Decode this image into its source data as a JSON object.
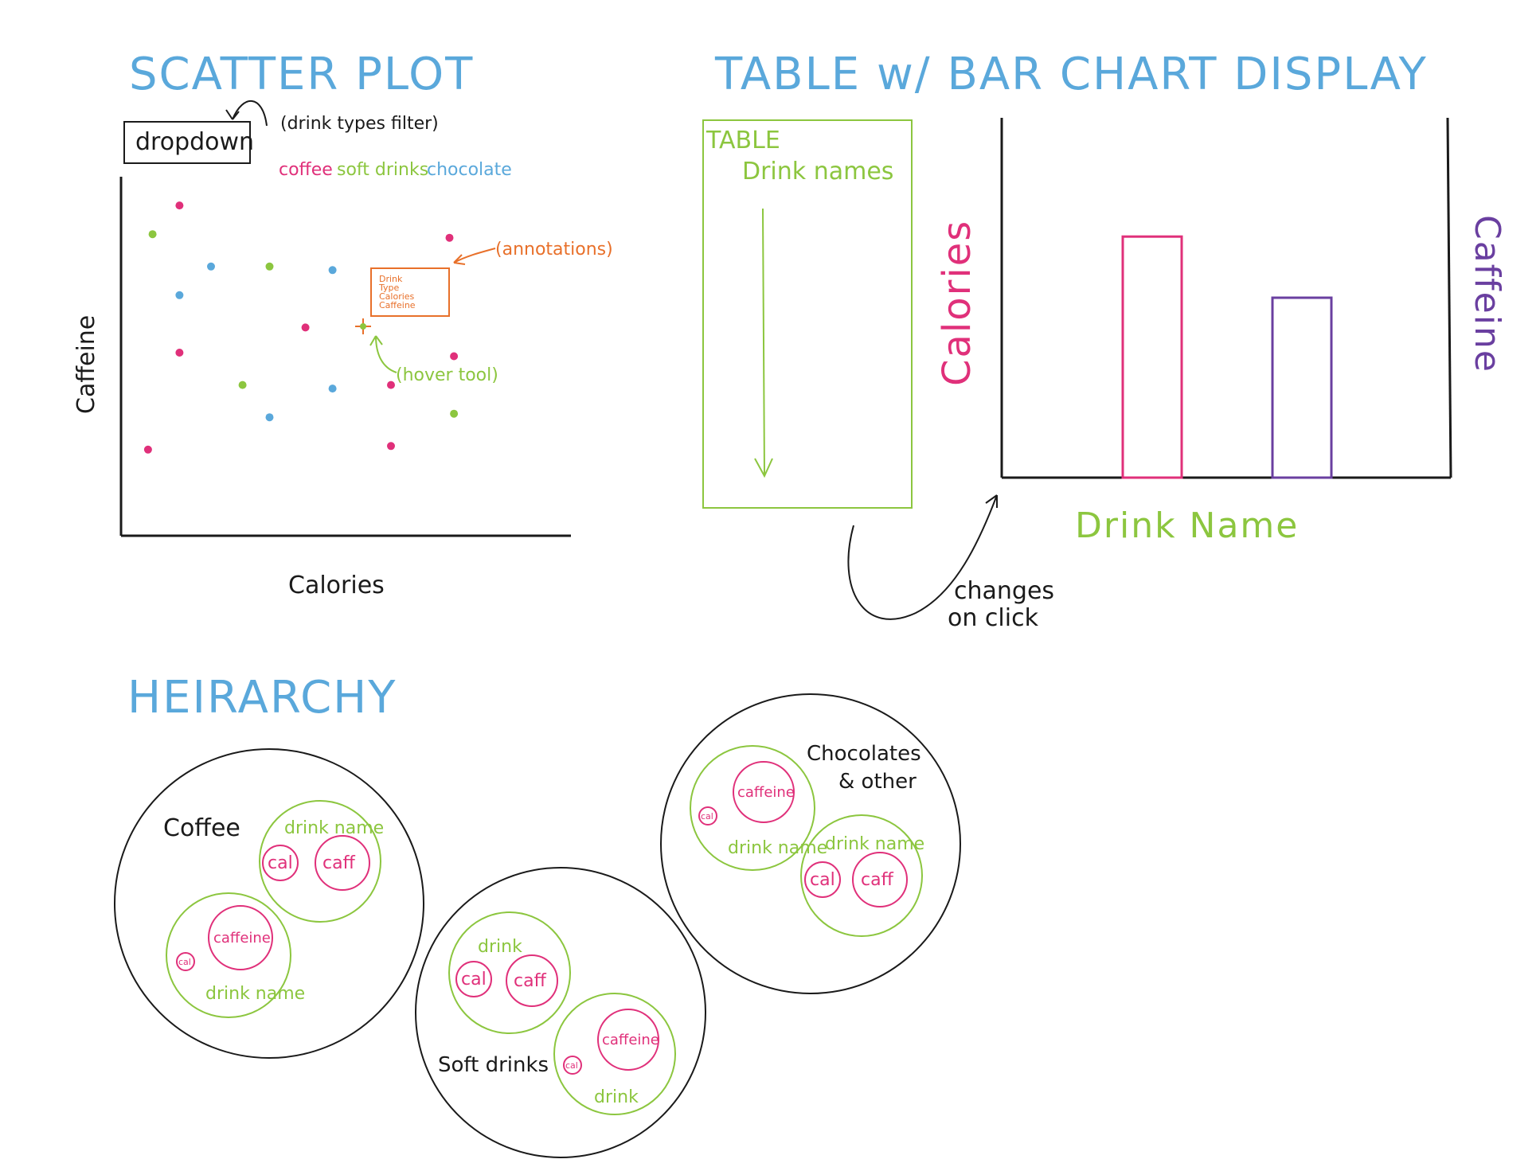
{
  "scatter": {
    "heading": "SCATTER PLOT",
    "dropdown_label": "dropdown",
    "filter_note": "(drink types filter)",
    "legend": [
      {
        "label": "coffee",
        "color": "#e0307a"
      },
      {
        "label": "soft drinks",
        "color": "#8cc63f"
      },
      {
        "label": "chocolate",
        "color": "#5aa8db"
      }
    ],
    "xlabel": "Calories",
    "ylabel": "Caffeine",
    "annotations_note": "(annotations)",
    "annotation_box_lines": [
      "Drink",
      "Type",
      "Calories",
      "Caffeine"
    ],
    "hover_note": "(hover tool)"
  },
  "table_section": {
    "heading": "TABLE w/ BAR CHART DISPLAY",
    "table_title": "TABLE",
    "table_subtitle": "Drink names",
    "changes_note_line1": "changes",
    "changes_note_line2": "on click"
  },
  "bar": {
    "left_label": "Calories",
    "right_label": "Caffeine",
    "xlabel": "Drink Name"
  },
  "hierarchy": {
    "heading": "HEIRARCHY",
    "coffee": {
      "label": "Coffee",
      "drink_a": {
        "label": "drink name",
        "cal": "cal",
        "caff": "caff"
      },
      "drink_b": {
        "label": "drink name",
        "cal": "cal",
        "caff": "caffeine"
      }
    },
    "soft": {
      "label": "Soft drinks",
      "drink_a": {
        "label": "drink",
        "cal": "cal",
        "caff": "caff"
      },
      "drink_b": {
        "label": "drink",
        "cal": "cal",
        "caff": "caffeine"
      }
    },
    "choc": {
      "label_line1": "Chocolates",
      "label_line2": "& other",
      "drink_a": {
        "label": "drink name",
        "cal": "cal",
        "caff": "caffeine"
      },
      "drink_b": {
        "label": "drink name",
        "cal": "cal",
        "caff": "caff"
      }
    }
  },
  "chart_data": [
    {
      "type": "scatter",
      "title": "SCATTER PLOT",
      "xlabel": "Calories",
      "ylabel": "Caffeine",
      "xlim": [
        0,
        100
      ],
      "ylim": [
        0,
        100
      ],
      "series": [
        {
          "name": "coffee",
          "color": "#e0307a",
          "points": [
            [
              13,
              92
            ],
            [
              73,
              83
            ],
            [
              13,
              51
            ],
            [
              41,
              58
            ],
            [
              6,
              24
            ],
            [
              60,
              42
            ],
            [
              60,
              25
            ],
            [
              74,
              50
            ]
          ]
        },
        {
          "name": "soft drinks",
          "color": "#8cc63f",
          "points": [
            [
              7,
              84
            ],
            [
              33,
              75
            ],
            [
              27,
              42
            ],
            [
              74,
              34
            ]
          ]
        },
        {
          "name": "chocolate",
          "color": "#5aa8db",
          "points": [
            [
              20,
              75
            ],
            [
              13,
              67
            ],
            [
              47,
              74
            ],
            [
              47,
              41
            ],
            [
              33,
              33
            ]
          ]
        }
      ]
    },
    {
      "type": "bar",
      "xlabel": "Drink Name",
      "ylabel": "Calories",
      "ylabel_right": "Caffeine",
      "ylim": [
        0,
        100
      ],
      "series": [
        {
          "name": "Calories",
          "color": "#e0307a",
          "values": [
            67
          ]
        },
        {
          "name": "Caffeine",
          "color": "#6a3fa0",
          "values": [
            50
          ]
        }
      ]
    }
  ]
}
